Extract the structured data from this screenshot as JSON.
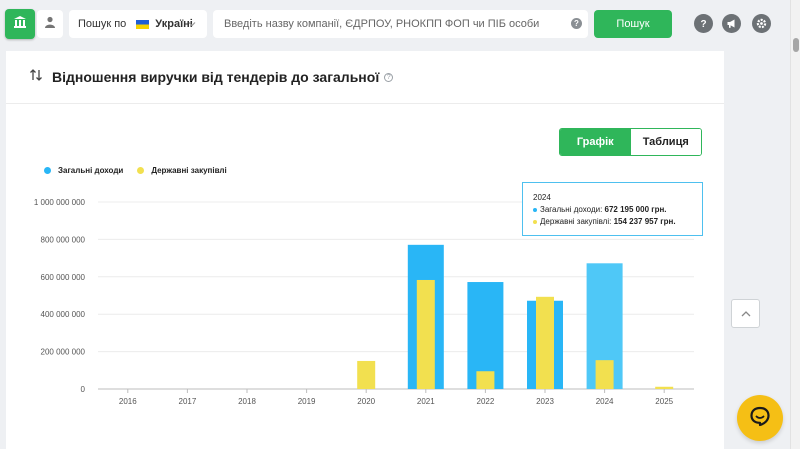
{
  "header": {
    "search_scope_label": "Пошук по",
    "search_scope_value": "Україні",
    "search_placeholder": "Введіть назву компанії, ЄДРПОУ, РНОКПП ФОП чи ПІБ особи",
    "search_help": "?",
    "search_button": "Пошук",
    "icons": [
      "bank-icon",
      "user-icon",
      "question-icon",
      "megaphone-icon",
      "gear-icon"
    ]
  },
  "card": {
    "title": "Відношення виручки від тендерів до загальної",
    "info": "?",
    "view_toggle": {
      "chart_label": "Графік",
      "table_label": "Таблиця",
      "active": "chart"
    }
  },
  "tooltip": {
    "year": "2024",
    "line1_label": "Загальні доходи:",
    "line1_value": "672 195 000 грн.",
    "line2_label": "Державні закупівлі:",
    "line2_value": "154 237 957 грн."
  },
  "colors": {
    "accent_green": "#2fb65a",
    "total_income": "#29b6f6",
    "total_income_highlight": "#4fc8f7",
    "state_procurement": "#f2e04f",
    "chat": "#f5bf15"
  },
  "chart_data": {
    "type": "bar",
    "categories": [
      "2016",
      "2017",
      "2018",
      "2019",
      "2020",
      "2021",
      "2022",
      "2023",
      "2024",
      "2025"
    ],
    "series": [
      {
        "name": "Загальні доходи",
        "values": [
          0,
          0,
          0,
          0,
          0,
          771000000,
          572000000,
          472000000,
          672195000,
          0
        ]
      },
      {
        "name": "Державні закупівлі",
        "values": [
          0,
          0,
          0,
          0,
          150000000,
          583000000,
          95000000,
          493000000,
          154237957,
          12000000
        ]
      }
    ],
    "ylim": [
      0,
      1000000000
    ],
    "yticks": [
      "0",
      "200 000 000",
      "400 000 000",
      "600 000 000",
      "800 000 000",
      "1 000 000 000"
    ],
    "grid": true,
    "legend": "top-left",
    "highlighted_category": "2024"
  }
}
